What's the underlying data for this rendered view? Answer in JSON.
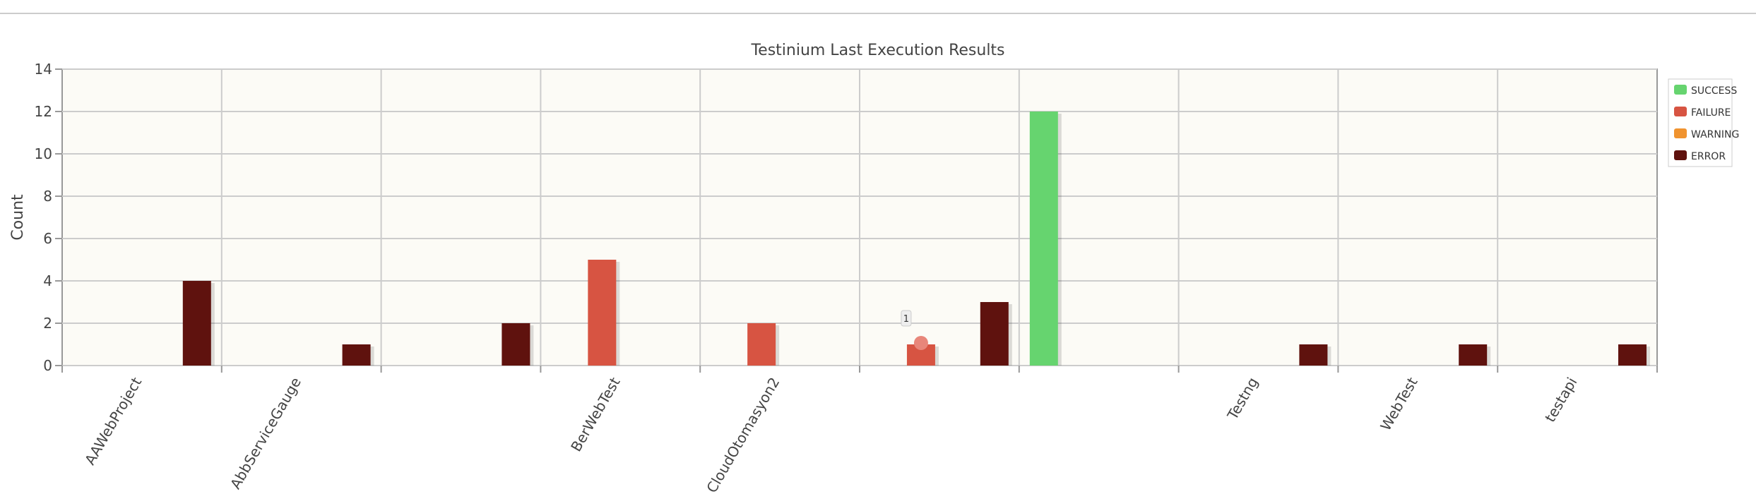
{
  "chart_data": {
    "type": "bar",
    "title": "Testinium Last Execution Results",
    "xlabel": "",
    "ylabel": "Count",
    "ylim": [
      0,
      14
    ],
    "yticks": [
      0,
      2,
      4,
      6,
      8,
      10,
      12,
      14
    ],
    "grid": true,
    "legend_position": "right",
    "categories": [
      "AAWebProject",
      "AbbServiceGauge",
      "",
      "BerWebTest",
      "CloudOtomasyon2",
      "",
      "",
      "Testng",
      "WebTest",
      "testapi"
    ],
    "series": [
      {
        "name": "SUCCESS",
        "color": "#66d46f",
        "values": [
          0,
          0,
          0,
          0,
          0,
          0,
          12,
          0,
          0,
          0
        ]
      },
      {
        "name": "FAILURE",
        "color": "#d75442",
        "values": [
          0,
          0,
          0,
          5,
          2,
          1,
          0,
          0,
          0,
          0
        ]
      },
      {
        "name": "WARNING",
        "color": "#f0932f",
        "values": [
          0,
          0,
          0,
          0,
          0,
          0,
          0,
          0,
          0,
          0
        ]
      },
      {
        "name": "ERROR",
        "color": "#5f120e",
        "values": [
          4,
          1,
          2,
          0,
          0,
          3,
          0,
          1,
          1,
          1
        ]
      }
    ],
    "tooltip": {
      "category_index": 5,
      "series": "FAILURE",
      "text": "1"
    }
  }
}
